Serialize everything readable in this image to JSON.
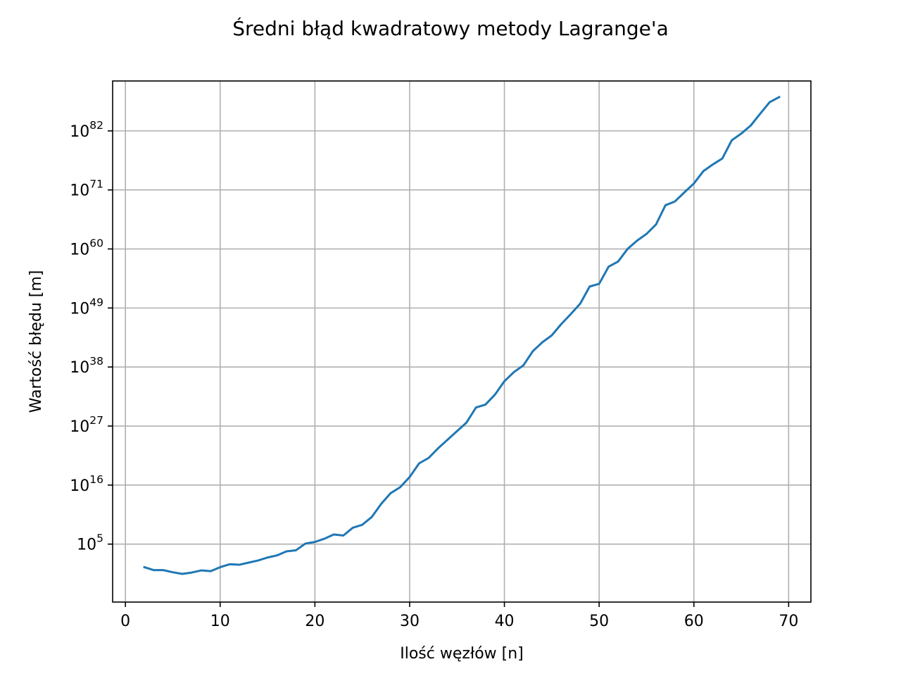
{
  "chart_data": {
    "type": "line",
    "title": "Średni błąd kwadratowy metody Lagrange'a",
    "xlabel": "Ilość węzłów [n]",
    "ylabel": "Wartość błędu [m]",
    "x_scale": "linear",
    "y_scale": "log",
    "xlim": [
      -1.35,
      72.35
    ],
    "ylim_log10": [
      -5.8,
      91.3
    ],
    "grid": true,
    "legend": "none",
    "x_ticks": [
      0,
      10,
      20,
      30,
      40,
      50,
      60,
      70
    ],
    "x_tick_labels": [
      "0",
      "10",
      "20",
      "30",
      "40",
      "50",
      "60",
      "70"
    ],
    "y_ticks_exponent": [
      5,
      16,
      27,
      38,
      49,
      60,
      71,
      82
    ],
    "y_tick_base": "10",
    "y_tick_exponent_labels": [
      "5",
      "16",
      "27",
      "38",
      "49",
      "60",
      "71",
      "82"
    ],
    "series": [
      {
        "color": "#1f77b4",
        "x": [
          2,
          3,
          4,
          5,
          6,
          7,
          8,
          9,
          10,
          11,
          12,
          13,
          14,
          15,
          16,
          17,
          18,
          19,
          20,
          21,
          22,
          23,
          24,
          25,
          26,
          27,
          28,
          29,
          30,
          31,
          32,
          33,
          34,
          35,
          36,
          37,
          38,
          39,
          40,
          41,
          42,
          43,
          44,
          45,
          46,
          47,
          48,
          49,
          50,
          51,
          52,
          53,
          54,
          55,
          56,
          57,
          58,
          59,
          60,
          61,
          62,
          63,
          64,
          65,
          66,
          67,
          68,
          69
        ],
        "log10_y": [
          0.7,
          0.15,
          0.15,
          -0.25,
          -0.55,
          -0.3,
          0.1,
          -0.05,
          0.7,
          1.25,
          1.15,
          1.55,
          1.95,
          2.5,
          2.9,
          3.65,
          3.85,
          5.1,
          5.4,
          6.0,
          6.8,
          6.6,
          8.05,
          8.6,
          10.05,
          12.5,
          14.5,
          15.6,
          17.5,
          20.05,
          21.05,
          22.85,
          24.45,
          26.05,
          27.65,
          30.45,
          31.0,
          32.85,
          35.35,
          37.05,
          38.3,
          40.95,
          42.6,
          43.9,
          46.0,
          47.85,
          49.8,
          53.0,
          53.5,
          56.7,
          57.65,
          60.0,
          61.55,
          62.8,
          64.55,
          68.15,
          68.85,
          70.55,
          72.2,
          74.5,
          75.75,
          76.85,
          80.25,
          81.5,
          83.0,
          85.2,
          87.35,
          88.3
        ]
      }
    ]
  }
}
